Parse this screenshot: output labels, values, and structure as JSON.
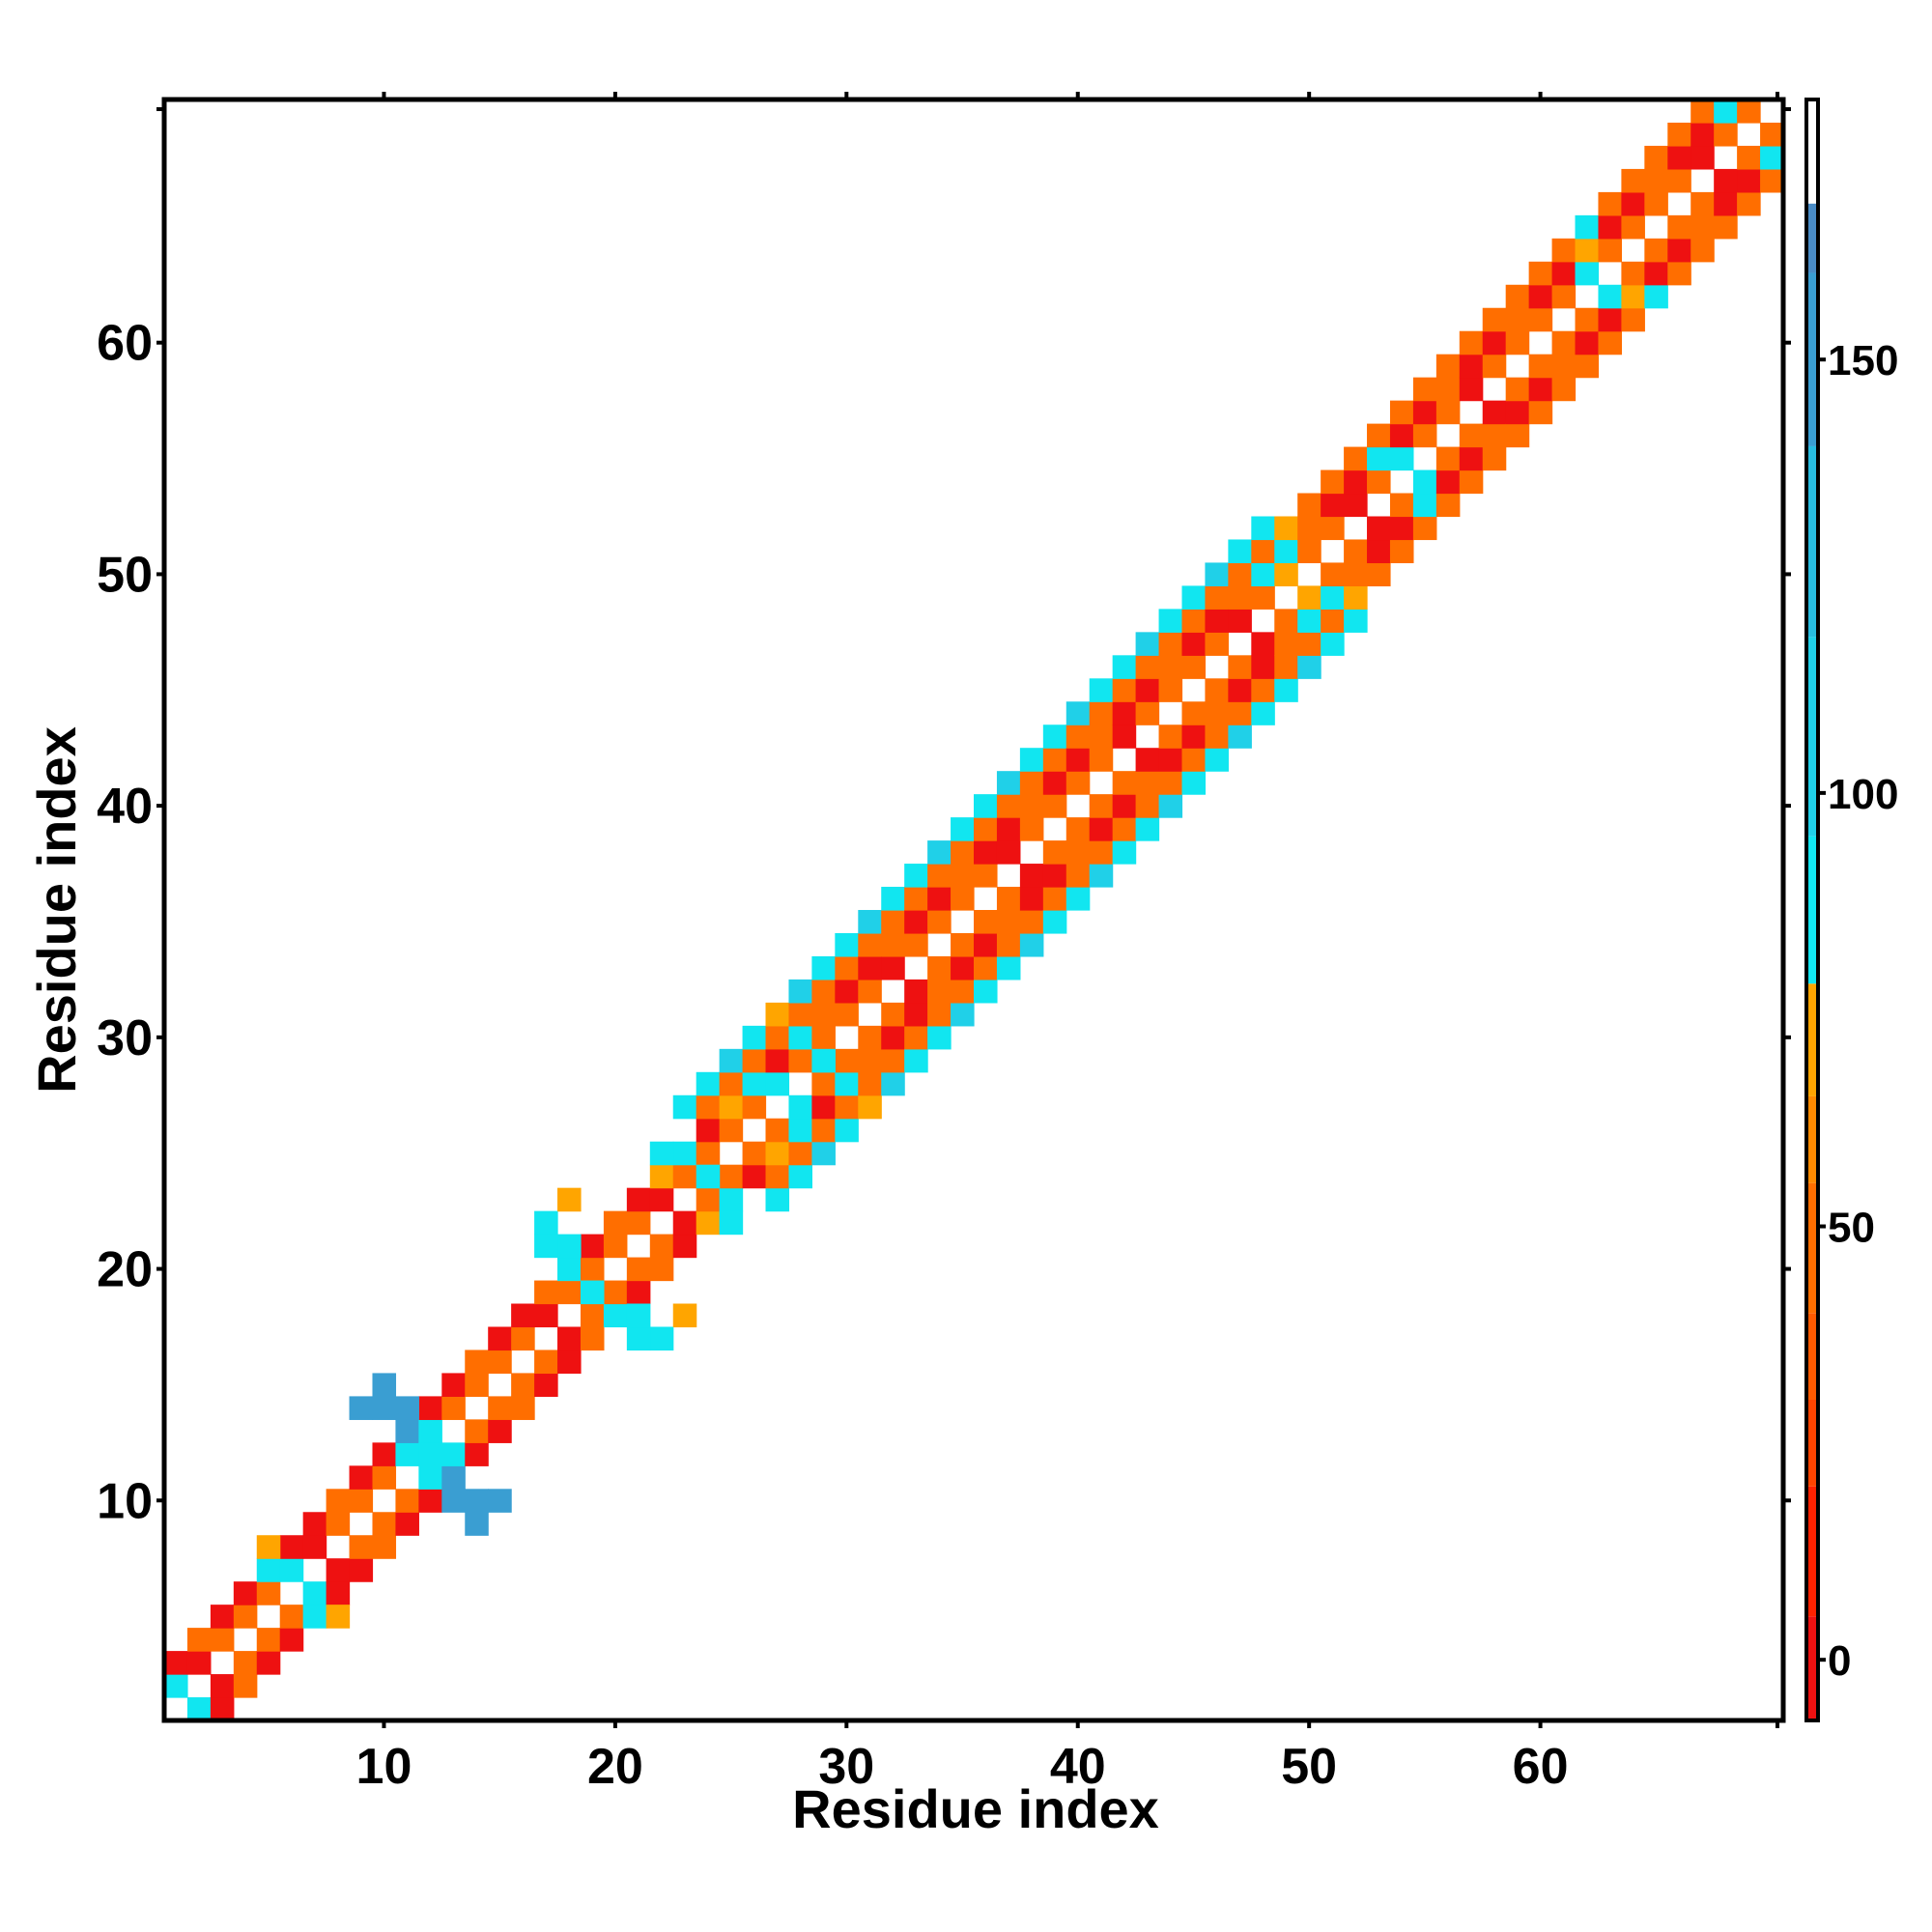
{
  "chart_data": {
    "type": "heatmap",
    "title": "",
    "xlabel": "Residue index",
    "ylabel": "Residue index",
    "xlim": [
      0.5,
      70.5
    ],
    "ylim": [
      0.5,
      70.5
    ],
    "grid": false,
    "x_ticks": [
      10,
      20,
      30,
      40,
      50,
      60
    ],
    "y_ticks": [
      10,
      20,
      30,
      40,
      50,
      60
    ],
    "colorbar": {
      "range": [
        -7,
        180
      ],
      "ticks": [
        0,
        50,
        100,
        150
      ],
      "segments": [
        {
          "from": -7,
          "to": 5,
          "color": "#ee1111"
        },
        {
          "from": 5,
          "to": 20,
          "color": "#ff2200"
        },
        {
          "from": 20,
          "to": 30,
          "color": "#ff4400"
        },
        {
          "from": 30,
          "to": 40,
          "color": "#ff5a00"
        },
        {
          "from": 40,
          "to": 55,
          "color": "#ff6e00"
        },
        {
          "from": 55,
          "to": 65,
          "color": "#ff8a00"
        },
        {
          "from": 65,
          "to": 78,
          "color": "#ffa500"
        },
        {
          "from": 78,
          "to": 95,
          "color": "#11e6f0"
        },
        {
          "from": 95,
          "to": 118,
          "color": "#20d0e8"
        },
        {
          "from": 118,
          "to": 140,
          "color": "#28bce0"
        },
        {
          "from": 140,
          "to": 160,
          "color": "#3a9ed2"
        },
        {
          "from": 160,
          "to": 168,
          "color": "#4a8cc6"
        },
        {
          "from": 168,
          "to": 180,
          "color": "#ffffff"
        }
      ]
    },
    "color_legend": {
      "red": -2,
      "orange": 45,
      "amber": 70,
      "cyan": 88,
      "sky": 112,
      "steel": 150
    },
    "diagonal_bands": [
      {
        "from": 1,
        "to": 26,
        "half_width": 2
      },
      {
        "from": 27,
        "to": 48,
        "half_width": 4
      },
      {
        "from": 49,
        "to": 70,
        "half_width": 3
      }
    ],
    "overrides": {
      "steel": [
        [
          10,
          14
        ],
        [
          10,
          15
        ],
        [
          11,
          14
        ],
        [
          13,
          10
        ],
        [
          14,
          10
        ],
        [
          15,
          10
        ],
        [
          14,
          9
        ],
        [
          9,
          14
        ],
        [
          11,
          13
        ],
        [
          13,
          11
        ]
      ],
      "cyan": [
        [
          1,
          2
        ],
        [
          2,
          1
        ],
        [
          5,
          7
        ],
        [
          7,
          5
        ],
        [
          6,
          7
        ],
        [
          7,
          6
        ],
        [
          17,
          22
        ],
        [
          22,
          17
        ],
        [
          17,
          21
        ],
        [
          21,
          17
        ],
        [
          18,
          21
        ],
        [
          21,
          18
        ],
        [
          19,
          19
        ],
        [
          20,
          18
        ],
        [
          18,
          20
        ],
        [
          23,
          25
        ],
        [
          25,
          23
        ],
        [
          24,
          24
        ],
        [
          25,
          22
        ],
        [
          22,
          25
        ],
        [
          28,
          27
        ],
        [
          27,
          28
        ],
        [
          29,
          29
        ],
        [
          30,
          28
        ],
        [
          28,
          30
        ],
        [
          26,
          28
        ],
        [
          28,
          26
        ],
        [
          12,
          12
        ],
        [
          12,
          11
        ],
        [
          11,
          12
        ],
        [
          13,
          12
        ],
        [
          12,
          13
        ],
        [
          48,
          50
        ],
        [
          50,
          48
        ],
        [
          49,
          51
        ],
        [
          51,
          49
        ],
        [
          53,
          55
        ],
        [
          55,
          53
        ],
        [
          54,
          55
        ],
        [
          55,
          54
        ],
        [
          62,
          63
        ],
        [
          63,
          62
        ],
        [
          62,
          65
        ],
        [
          65,
          62
        ],
        [
          68,
          70
        ],
        [
          70,
          68
        ]
      ],
      "amber": [
        [
          5,
          8
        ],
        [
          8,
          5
        ],
        [
          27,
          31
        ],
        [
          31,
          27
        ],
        [
          25,
          27
        ],
        [
          27,
          25
        ],
        [
          18,
          23
        ],
        [
          23,
          18
        ],
        [
          49,
          52
        ],
        [
          52,
          49
        ],
        [
          50,
          49
        ],
        [
          49,
          50
        ],
        [
          64,
          62
        ],
        [
          62,
          64
        ],
        [
          22,
          24
        ],
        [
          24,
          22
        ]
      ]
    }
  }
}
